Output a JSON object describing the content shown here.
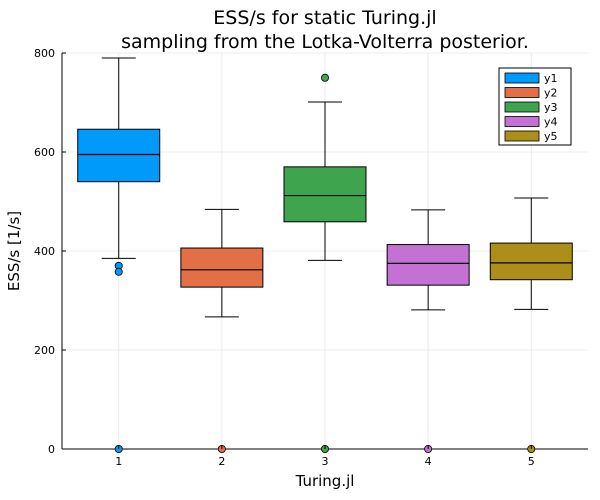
{
  "chart_data": {
    "type": "box",
    "title": "ESS/s for static Turing.jl",
    "subtitle": "sampling from the Lotka-Volterra posterior.",
    "xlabel": "Turing.jl",
    "ylabel": "ESS/s [1/s]",
    "ylim": [
      0,
      800
    ],
    "yticks": [
      0,
      200,
      400,
      600,
      800
    ],
    "grid": true,
    "legend_position": "top-right",
    "series": [
      {
        "name": "y1",
        "x": 1,
        "color": "#009AFA",
        "whisker_low": 385,
        "q1": 540,
        "median": 595,
        "q3": 646,
        "whisker_high": 790,
        "outliers": [
          370,
          358,
          0
        ]
      },
      {
        "name": "y2",
        "x": 2,
        "color": "#E36F47",
        "whisker_low": 267,
        "q1": 327,
        "median": 362,
        "q3": 406,
        "whisker_high": 484,
        "outliers": [
          0
        ]
      },
      {
        "name": "y3",
        "x": 3,
        "color": "#3EA44E",
        "whisker_low": 381,
        "q1": 459,
        "median": 512,
        "q3": 570,
        "whisker_high": 701,
        "outliers": [
          750,
          0
        ]
      },
      {
        "name": "y4",
        "x": 4,
        "color": "#C371D2",
        "whisker_low": 281,
        "q1": 331,
        "median": 375,
        "q3": 413,
        "whisker_high": 483,
        "outliers": [
          0
        ]
      },
      {
        "name": "y5",
        "x": 5,
        "color": "#AC8E18",
        "whisker_low": 282,
        "q1": 342,
        "median": 376,
        "q3": 416,
        "whisker_high": 507,
        "outliers": [
          0
        ]
      }
    ]
  }
}
